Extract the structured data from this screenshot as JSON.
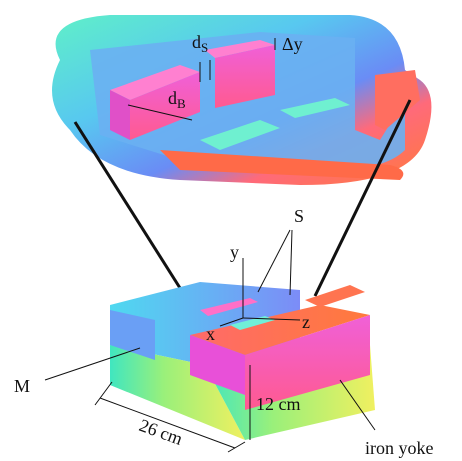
{
  "labels": {
    "d_s": {
      "main": "d",
      "sub": "S"
    },
    "delta_y": "Δy",
    "d_b": {
      "main": "d",
      "sub": "B"
    },
    "s": "S",
    "y": "y",
    "x": "x",
    "z": "z",
    "m": "M",
    "width": "26 cm",
    "height": "12 cm",
    "yoke": "iron yoke"
  }
}
